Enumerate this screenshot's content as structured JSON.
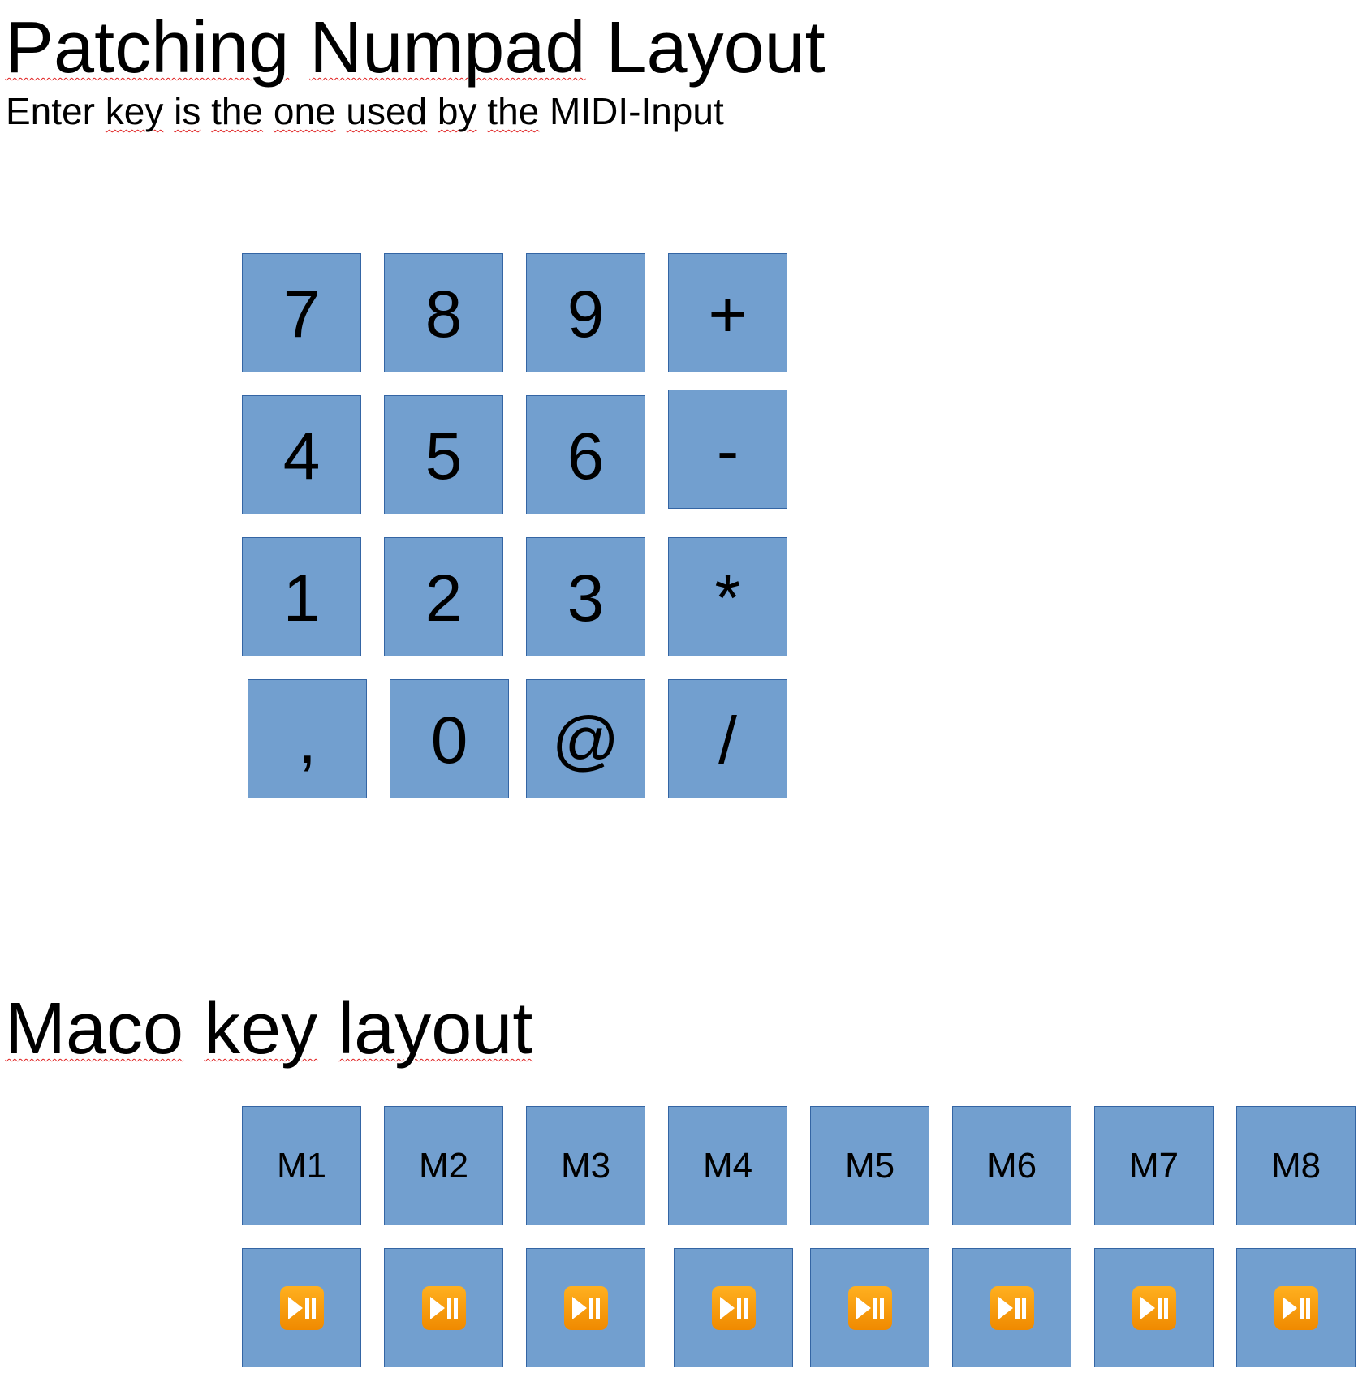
{
  "numpad_section": {
    "title_words": [
      "Patching",
      "Numpad",
      "Layout"
    ],
    "subtitle_words": [
      "Enter",
      "key",
      "is",
      "the",
      "one",
      "used",
      "by",
      "the",
      "MIDI-Input"
    ],
    "keys": [
      "7",
      "8",
      "9",
      "+",
      "4",
      "5",
      "6",
      "-",
      "1",
      "2",
      "3",
      "*",
      ",",
      "0",
      "@",
      "/"
    ]
  },
  "macro_section": {
    "title_words": [
      "Maco",
      "key",
      "layout"
    ],
    "macro_keys": [
      "M1",
      "M2",
      "M3",
      "M4",
      "M5",
      "M6",
      "M7",
      "M8"
    ],
    "play_keys_icon": "play-pause-icon"
  },
  "colors": {
    "key_fill": "#729fcf",
    "key_border": "#3465a4",
    "play_icon": "#f39c12",
    "spellcheck_underline": "#e02020"
  }
}
